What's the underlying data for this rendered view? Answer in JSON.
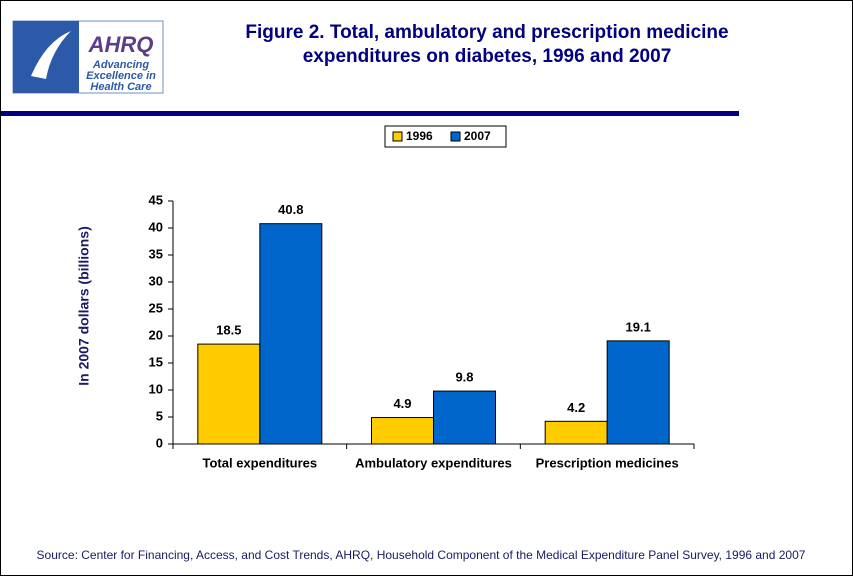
{
  "logo": {
    "name": "AHRQ",
    "tagline": [
      "Advancing",
      "Excellence in",
      "Health Care"
    ]
  },
  "source": "Source: Center for Financing, Access, and Cost Trends, AHRQ, Household Component of the Medical Expenditure Panel Survey, 1996 and 2007",
  "chart_data": {
    "type": "bar",
    "title": [
      "Figure 2. Total, ambulatory and prescription medicine",
      "expenditures on diabetes, 1996 and 2007"
    ],
    "y_label": "In 2007 dollars (billions)",
    "categories": [
      "Total expenditures",
      "Ambulatory expenditures",
      "Prescription medicines"
    ],
    "series": [
      {
        "name": "1996",
        "color": "#ffcc00",
        "values": [
          18.5,
          4.9,
          4.2
        ]
      },
      {
        "name": "2007",
        "color": "#0066cc",
        "values": [
          40.8,
          9.8,
          19.1
        ]
      }
    ],
    "ylim": [
      0,
      45
    ],
    "yticks": [
      0,
      5,
      10,
      15,
      20,
      25,
      30,
      35,
      40,
      45
    ],
    "legend": "top",
    "grid": false
  }
}
